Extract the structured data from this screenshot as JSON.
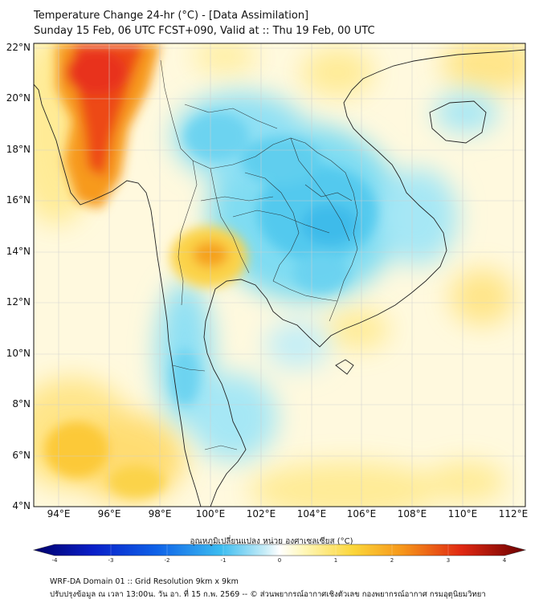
{
  "header": {
    "title_line1": "Temperature Change 24-hr (°C) - [Data Assimilation]",
    "title_line2": "Sunday 15 Feb, 06 UTC FCST+090, Valid at :: Thu 19 Feb, 00 UTC"
  },
  "map": {
    "lat_labels": [
      "22°N",
      "20°N",
      "18°N",
      "16°N",
      "14°N",
      "12°N",
      "10°N",
      "8°N",
      "6°N",
      "4°N"
    ],
    "lon_labels": [
      "94°E",
      "96°E",
      "98°E",
      "100°E",
      "102°E",
      "104°E",
      "106°E",
      "108°E",
      "110°E",
      "112°E"
    ],
    "lon_range": [
      93.0,
      112.5
    ],
    "lat_range": [
      4.0,
      22.2
    ]
  },
  "colorbar": {
    "label": "อุณหภูมิเปลี่ยนแปลง หน่วย องศาเซลเซียส (°C)",
    "ticks": [
      "-4",
      "-3",
      "-2",
      "-1",
      "0",
      "1",
      "2",
      "3",
      "4"
    ],
    "range": [
      -4,
      4
    ]
  },
  "footer": {
    "line1": "WRF-DA Domain 01 :: Grid Resolution 9km x 9km",
    "line2": "ปรับปรุงข้อมูล ณ เวลา 13:00น. วัน อา. ที่ 15 ก.พ. 2569 -- © ส่วนพยากรณ์อากาศเชิงตัวเลข กองพยากรณ์อากาศ กรมอุตุนิยมวิทยา"
  },
  "colors": {
    "warm_peak": "#e8321a",
    "warm": "#f6b21b",
    "neutral": "#fff9e0",
    "cool": "#5ccdee",
    "cool_peak": "#2aa8e8",
    "coast": "#222222"
  }
}
